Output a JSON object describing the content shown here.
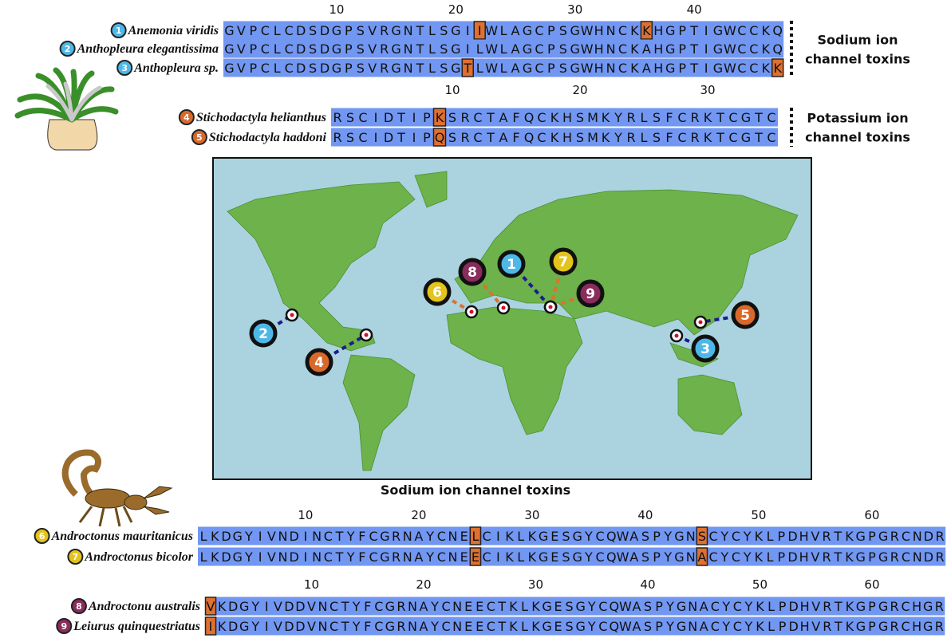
{
  "blocks": [
    {
      "ruler": [
        10,
        20,
        30,
        40
      ],
      "side_label": [
        "Sodium ion",
        "channel toxins"
      ],
      "rows": [
        {
          "badge": "1",
          "color": "#4db8e8",
          "name": "Anemonia viridis",
          "sequence": "GVPCLCDSDGPSVRGNTLSGIIWLAGCPSGWHNCKKHGPTIGWCCKQ",
          "highlight": [
            22,
            36
          ]
        },
        {
          "badge": "2",
          "color": "#4db8e8",
          "name": "Anthopleura elegantissima",
          "sequence": "GVPCLCDSDGPSVRGNTLSGILWLAGCPSGWHNCKAHGPTIGWCCKQ",
          "highlight": []
        },
        {
          "badge": "3",
          "color": "#4db8e8",
          "name": "Anthopleura sp.",
          "sequence": "GVPCLCDSDGPSVRGNTLSGTLWLAGCPSGWHNCKAHGPTIGWCCKK",
          "highlight": [
            21,
            47
          ]
        }
      ]
    },
    {
      "ruler": [
        10,
        20,
        30
      ],
      "side_label": [
        "Potassium ion",
        "channel toxins"
      ],
      "rows": [
        {
          "badge": "4",
          "color": "#d9692a",
          "name": "Stichodactyla helianthus",
          "sequence": "RSCIDTIPKSRCTAFQCKHSMKYRLSFCRKTCGTC",
          "highlight": [
            9
          ]
        },
        {
          "badge": "5",
          "color": "#d9692a",
          "name": "Stichodactyla haddoni",
          "sequence": "RSCIDTIPQSRCTAFQCKHSMKYRLSFCRKTCGTC",
          "highlight": [
            9
          ]
        }
      ]
    },
    {
      "heading": "Sodium ion channel toxins",
      "ruler": [
        10,
        20,
        30,
        40,
        50,
        60
      ],
      "rows": [
        {
          "badge": "6",
          "color": "#e3c31c",
          "name": "Androctonus mauritanicus",
          "sequence": "LKDGYIVNDINCTYFCGRNAYCNELCIKLKGESGYCQWASPYGNSCYCYKLPDHVRTKGPGRCNDR",
          "highlight": [
            25,
            45
          ]
        },
        {
          "badge": "7",
          "color": "#e3c31c",
          "name": "Androctonus bicolor",
          "sequence": "LKDGYIVNDINCTYFCGRNAYCNEECIKLKGESGYCQWASPYGNACYCYKLPDHVRTKGPGRCNDR",
          "highlight": [
            25,
            45
          ]
        }
      ]
    },
    {
      "ruler": [
        10,
        20,
        30,
        40,
        50,
        60
      ],
      "rows": [
        {
          "badge": "8",
          "color": "#8a2c5c",
          "name": "Androctonu australis",
          "sequence": "VKDGYIVDDVNCTYFCGRNAYCNEECTKLKGESGYCQWASPYGNACYCYKLPDHVRTKGPGRCHGR",
          "highlight": [
            1
          ]
        },
        {
          "badge": "9",
          "color": "#8a2c5c",
          "name": "Leiurus quinquestriatus",
          "sequence": "IKDGYIVDDVNCTYFCGRNAYCNEECTKLKGESGYCQWASPYGNACYCYKLPDHVRTKGPGRCHGR",
          "highlight": [
            1
          ]
        }
      ]
    }
  ]
}
